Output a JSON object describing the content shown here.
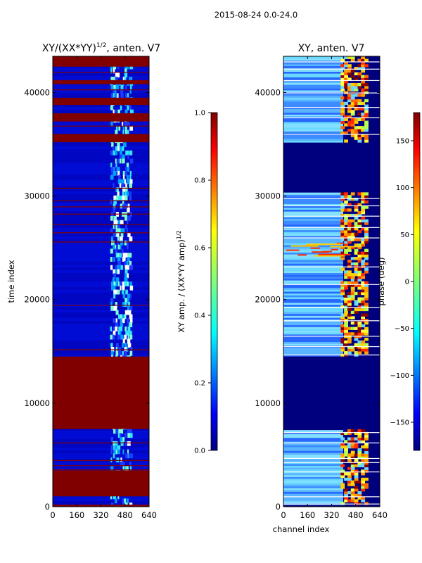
{
  "figure_title": "2015-08-24 0.0-24.0",
  "colors": {
    "bad_flag": "#800000",
    "amp_low": "#0000b4",
    "amp_mid": "#1e3cff",
    "amp_high": "#32e6ff",
    "phase_low": "#00007f",
    "phase_mid": "#6ad8ff",
    "phase_high": "#ff2a00"
  },
  "chart_data": [
    {
      "type": "heatmap",
      "panel": "left",
      "title_main": "XY/(XX*YY)",
      "title_exp": "1/2",
      "title_tail": ", anten. V7",
      "xlabel": "",
      "ylabel": "time index",
      "xlim": [
        0,
        640
      ],
      "ylim": [
        0,
        43500
      ],
      "x_ticks": [
        0,
        160,
        320,
        480,
        640
      ],
      "y_ticks": [
        0,
        10000,
        20000,
        30000,
        40000
      ],
      "colorbar": {
        "label_main": "XY amp. / (XX*YY amp)",
        "label_exp": "1/2",
        "range": [
          0.0,
          1.0
        ],
        "ticks": [
          "0.0",
          "0.2",
          "0.4",
          "0.6",
          "0.8",
          "1.0"
        ]
      },
      "flagged_time_ranges": [
        [
          0,
          200
        ],
        [
          1000,
          3500
        ],
        [
          7500,
          14500
        ],
        [
          35200,
          36000
        ],
        [
          37200,
          38000
        ],
        [
          38800,
          39500
        ],
        [
          40800,
          41200
        ],
        [
          42500,
          43500
        ]
      ],
      "active_channel_range": [
        380,
        520
      ]
    },
    {
      "type": "heatmap",
      "panel": "right",
      "title": "XY, anten. V7",
      "xlabel": "channel index",
      "ylabel": "",
      "xlim": [
        0,
        640
      ],
      "ylim": [
        0,
        43500
      ],
      "x_ticks": [
        0,
        160,
        320,
        480,
        640
      ],
      "y_ticks": [
        0,
        10000,
        20000,
        30000,
        40000
      ],
      "colorbar": {
        "label": "phase (deg)",
        "range": [
          -180,
          180
        ],
        "ticks": [
          "150",
          "100",
          "50",
          "0",
          "−50",
          "−100",
          "−150"
        ]
      },
      "flagged_time_ranges": [
        [
          7500,
          14500
        ],
        [
          30500,
          35000
        ]
      ],
      "active_channel_range": [
        380,
        560
      ]
    }
  ]
}
